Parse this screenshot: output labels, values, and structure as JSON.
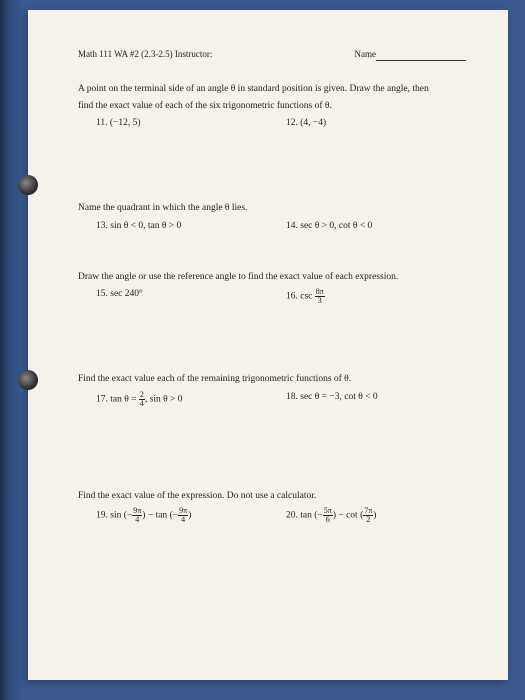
{
  "header": {
    "course": "Math 111 WA #2 (2.3-2.5) Instructor:",
    "name_label": "Name"
  },
  "sec1": {
    "instr1": "A point on the terminal side of an angle θ in standard position is given. Draw the angle, then",
    "instr2": "find the exact value of each of the six trigonometric functions of θ.",
    "p11": "11. (−12, 5)",
    "p12": "12. (4, −4)"
  },
  "sec2": {
    "instr": "Name the quadrant in which the angle θ lies.",
    "p13": "13. sin θ < 0, tan θ > 0",
    "p14": "14. sec θ > 0, cot θ < 0"
  },
  "sec3": {
    "instr": "Draw the angle or use the reference angle to find the exact value of each expression.",
    "p15": "15. sec 240°",
    "p16_a": "16. csc",
    "p16_num": "8π",
    "p16_den": "3"
  },
  "sec4": {
    "instr": "Find the exact value each of the remaining trigonometric functions of θ.",
    "p17_a": "17. tan θ = ",
    "p17_num": "2",
    "p17_den": "4",
    "p17_b": ", sin θ > 0",
    "p18": "18. sec θ = −3, cot θ < 0"
  },
  "sec5": {
    "instr": "Find the exact value of the expression. Do not use a calculator.",
    "p19_a": "19. sin",
    "p19_n1": "9π",
    "p19_d1": "4",
    "p19_b": " − tan",
    "p19_n2": "9π",
    "p19_d2": "4",
    "p20_a": "20. tan",
    "p20_n1": "5π",
    "p20_d1": "6",
    "p20_b": " − cot",
    "p20_n2": "7π",
    "p20_d2": "2"
  }
}
